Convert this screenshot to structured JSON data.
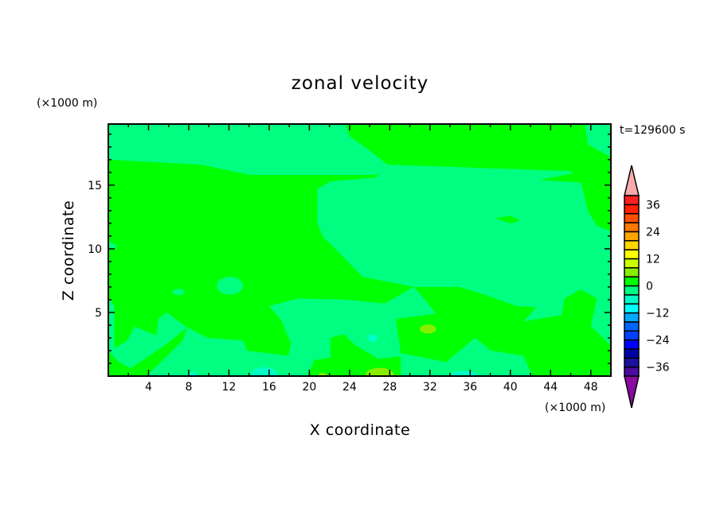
{
  "chart_data": {
    "type": "heatmap",
    "subtype": "filled-contour",
    "title": "zonal velocity",
    "time_label": "t=129600 s",
    "xlabel": "X coordinate",
    "ylabel": "Z coordinate",
    "x_unit": "(×1000 m)",
    "y_unit": "(×1000 m)",
    "xlim": [
      0,
      50
    ],
    "ylim": [
      0,
      19.8
    ],
    "x_ticks": [
      4,
      8,
      12,
      16,
      20,
      24,
      28,
      32,
      36,
      40,
      44,
      48
    ],
    "y_ticks": [
      5,
      10,
      15
    ],
    "x_tick_labels": [
      "4",
      "8",
      "12",
      "16",
      "20",
      "24",
      "28",
      "32",
      "36",
      "40",
      "44",
      "48"
    ],
    "y_tick_labels": [
      "5",
      "10",
      "15"
    ],
    "grid": false,
    "colorbar": {
      "levels": [
        -40,
        -36,
        -32,
        -28,
        -24,
        -20,
        -16,
        -12,
        -8,
        -4,
        0,
        4,
        8,
        12,
        16,
        20,
        24,
        28,
        32,
        36,
        40
      ],
      "labels": [
        "36",
        "24",
        "12",
        "0",
        "−12",
        "−24",
        "−36"
      ],
      "label_values": [
        36,
        24,
        12,
        0,
        -12,
        -24,
        -36
      ],
      "colors_low_to_high": [
        "#4b0aa0",
        "#1a10a0",
        "#0000aa",
        "#0000ff",
        "#0040ff",
        "#0066ff",
        "#00aaff",
        "#00ffff",
        "#00ffc8",
        "#00ff80",
        "#00ff00",
        "#88ee00",
        "#ccff00",
        "#ffff00",
        "#ffd700",
        "#ffa500",
        "#ff7800",
        "#ff5000",
        "#ff2000",
        "#ff2020"
      ],
      "over_color": "#ffaaaa",
      "under_color": "#8b0aa0",
      "extend": "both"
    },
    "background_range": [
      -4,
      0
    ],
    "regions": [
      {
        "range": [
          0,
          4
        ],
        "polygon": [
          [
            0,
            17
          ],
          [
            9.3,
            16.6
          ],
          [
            14.1,
            15.8
          ],
          [
            18.9,
            15.8
          ],
          [
            26.9,
            15.8
          ],
          [
            26.6,
            15.6
          ],
          [
            22.1,
            15.3
          ],
          [
            20.8,
            14.7
          ],
          [
            20.8,
            12
          ],
          [
            21.4,
            10.9
          ],
          [
            22.7,
            9.9
          ],
          [
            25.3,
            7.8
          ],
          [
            30.4,
            7.0
          ],
          [
            27.5,
            5.7
          ],
          [
            23.7,
            6.0
          ],
          [
            18.9,
            6.1
          ],
          [
            16,
            5.5
          ],
          [
            17.3,
            4.3
          ],
          [
            17.6,
            3.6
          ],
          [
            18.2,
            2.6
          ],
          [
            17.9,
            1.6
          ],
          [
            13.8,
            2.0
          ],
          [
            13.4,
            2.8
          ],
          [
            9.9,
            3.0
          ],
          [
            7.7,
            3.9
          ],
          [
            5.8,
            5.0
          ],
          [
            5,
            4.5
          ],
          [
            4.8,
            3.2
          ],
          [
            2.6,
            3.9
          ],
          [
            1.9,
            2.8
          ],
          [
            0.6,
            2.2
          ],
          [
            0.6,
            5.5
          ],
          [
            0,
            6.2
          ],
          [
            0,
            9.9
          ],
          [
            1,
            10.2
          ],
          [
            0,
            10.6
          ]
        ]
      },
      {
        "range": [
          0,
          4
        ],
        "polygon": [
          [
            23.5,
            19.9
          ],
          [
            24,
            18.85
          ],
          [
            26.2,
            17.6
          ],
          [
            27.8,
            16.6
          ],
          [
            31.7,
            16.5
          ],
          [
            46.1,
            16.1
          ],
          [
            46.1,
            15.9
          ],
          [
            42.9,
            15.4
          ],
          [
            47,
            15.2
          ],
          [
            47.4,
            14.1
          ],
          [
            47.7,
            13
          ],
          [
            48.6,
            11.8
          ],
          [
            50,
            11.4
          ],
          [
            50,
            17.2
          ],
          [
            47.7,
            18.2
          ],
          [
            47.4,
            19.9
          ]
        ]
      },
      {
        "range": [
          0,
          4
        ],
        "polygon": [
          [
            30.4,
            7.0
          ],
          [
            34.9,
            7.0
          ],
          [
            37.4,
            6.4
          ],
          [
            40.6,
            5.5
          ],
          [
            42.6,
            5.4
          ],
          [
            41.3,
            4.3
          ],
          [
            45.1,
            4.8
          ],
          [
            45.4,
            6.1
          ],
          [
            47,
            6.8
          ],
          [
            48.6,
            6.1
          ],
          [
            48,
            3.9
          ],
          [
            50,
            2.4
          ],
          [
            50,
            0
          ],
          [
            42.2,
            0
          ],
          [
            41.3,
            1.6
          ],
          [
            38.1,
            2.0
          ],
          [
            36.5,
            3.0
          ],
          [
            33.6,
            1.1
          ],
          [
            29.1,
            1.8
          ],
          [
            28.6,
            4.5
          ],
          [
            32.6,
            4.9
          ],
          [
            31.4,
            6.1
          ]
        ]
      },
      {
        "range": [
          0,
          4
        ],
        "polygon": [
          [
            19.8,
            0
          ],
          [
            20.5,
            1.25
          ],
          [
            22.1,
            1.45
          ],
          [
            22.1,
            3.0
          ],
          [
            23.4,
            3.3
          ],
          [
            24.6,
            2.4
          ],
          [
            26.9,
            1.35
          ],
          [
            29.1,
            1.56
          ],
          [
            29.1,
            0
          ]
        ]
      },
      {
        "range": [
          0,
          4
        ],
        "polygon": [
          [
            0,
            2.0
          ],
          [
            0,
            0
          ],
          [
            3.8,
            0
          ],
          [
            7.4,
            2.8
          ],
          [
            7.8,
            3.8
          ],
          [
            5.6,
            2.4
          ],
          [
            2.2,
            0.6
          ],
          [
            0.9,
            1.2
          ]
        ]
      },
      {
        "range": [
          0,
          4
        ],
        "polygon": [
          [
            38.5,
            12.4
          ],
          [
            40,
            12.6
          ],
          [
            41,
            12.2
          ],
          [
            40,
            12.0
          ]
        ]
      },
      {
        "range": [
          -4,
          0
        ],
        "ellipse": [
          12.1,
          7.1,
          1.3,
          0.7
        ]
      },
      {
        "range": [
          -4,
          0
        ],
        "ellipse": [
          7.0,
          6.6,
          0.6,
          0.25
        ]
      },
      {
        "range": [
          4,
          8
        ],
        "ellipse": [
          31.8,
          3.7,
          0.8,
          0.35
        ]
      },
      {
        "range": [
          4,
          8
        ],
        "ellipse": [
          27.0,
          0.1,
          1.4,
          0.55
        ]
      },
      {
        "range": [
          4,
          8
        ],
        "ellipse": [
          21.3,
          0.05,
          0.4,
          0.2
        ]
      },
      {
        "range": [
          -8,
          -4
        ],
        "ellipse": [
          15.5,
          0.1,
          1.3,
          0.6
        ]
      },
      {
        "range": [
          -8,
          -4
        ],
        "ellipse": [
          35.4,
          0.05,
          1.3,
          0.35
        ]
      },
      {
        "range": [
          -8,
          -4
        ],
        "ellipse": [
          26.3,
          3.0,
          0.45,
          0.3
        ]
      },
      {
        "range": [
          -8,
          -4
        ],
        "ellipse": [
          8.4,
          0.1,
          0.4,
          0.25
        ]
      }
    ]
  }
}
